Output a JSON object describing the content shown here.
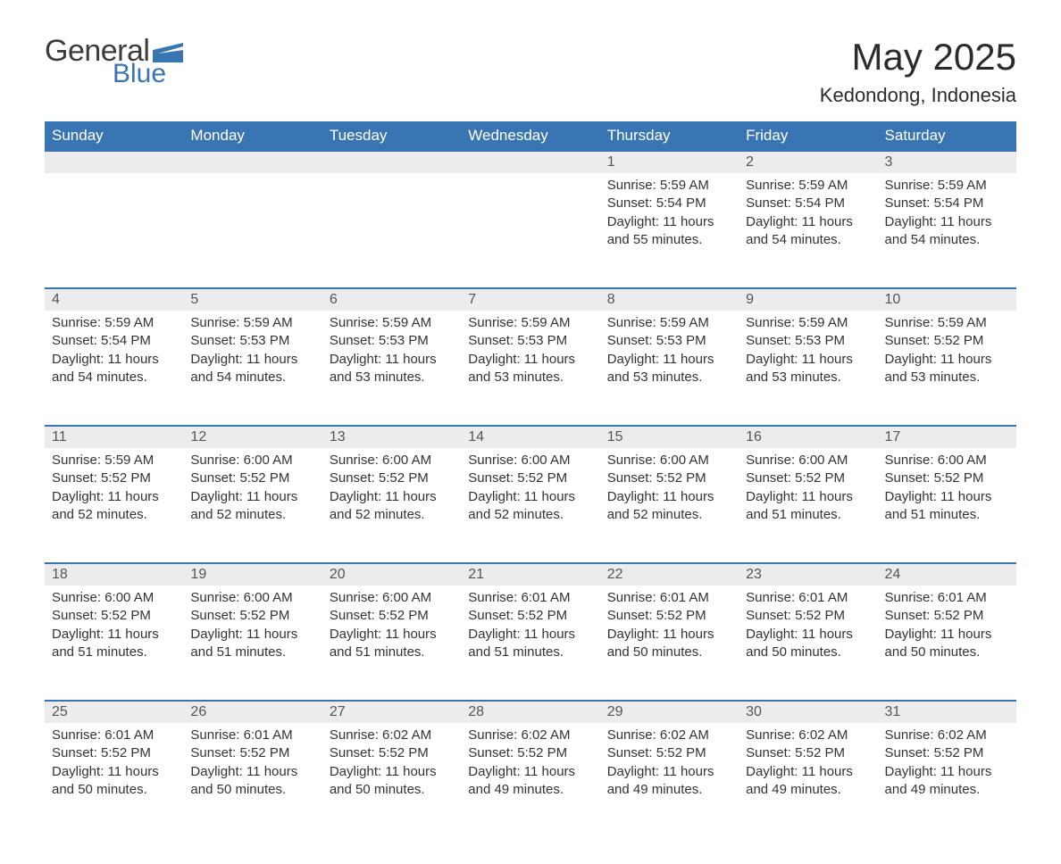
{
  "brand": {
    "word1": "General",
    "word2": "Blue",
    "flag_color": "#3a75b3",
    "text_color": "#3b3b3b"
  },
  "title": "May 2025",
  "location": "Kedondong, Indonesia",
  "header_bg": "#3a75b3",
  "header_text": "#ffffff",
  "daynum_bg": "#ececec",
  "border_color": "#3a75b3",
  "weekdays": [
    "Sunday",
    "Monday",
    "Tuesday",
    "Wednesday",
    "Thursday",
    "Friday",
    "Saturday"
  ],
  "weeks": [
    [
      null,
      null,
      null,
      null,
      {
        "n": "1",
        "sunrise": "5:59 AM",
        "sunset": "5:54 PM",
        "daylight": "11 hours and 55 minutes."
      },
      {
        "n": "2",
        "sunrise": "5:59 AM",
        "sunset": "5:54 PM",
        "daylight": "11 hours and 54 minutes."
      },
      {
        "n": "3",
        "sunrise": "5:59 AM",
        "sunset": "5:54 PM",
        "daylight": "11 hours and 54 minutes."
      }
    ],
    [
      {
        "n": "4",
        "sunrise": "5:59 AM",
        "sunset": "5:54 PM",
        "daylight": "11 hours and 54 minutes."
      },
      {
        "n": "5",
        "sunrise": "5:59 AM",
        "sunset": "5:53 PM",
        "daylight": "11 hours and 54 minutes."
      },
      {
        "n": "6",
        "sunrise": "5:59 AM",
        "sunset": "5:53 PM",
        "daylight": "11 hours and 53 minutes."
      },
      {
        "n": "7",
        "sunrise": "5:59 AM",
        "sunset": "5:53 PM",
        "daylight": "11 hours and 53 minutes."
      },
      {
        "n": "8",
        "sunrise": "5:59 AM",
        "sunset": "5:53 PM",
        "daylight": "11 hours and 53 minutes."
      },
      {
        "n": "9",
        "sunrise": "5:59 AM",
        "sunset": "5:53 PM",
        "daylight": "11 hours and 53 minutes."
      },
      {
        "n": "10",
        "sunrise": "5:59 AM",
        "sunset": "5:52 PM",
        "daylight": "11 hours and 53 minutes."
      }
    ],
    [
      {
        "n": "11",
        "sunrise": "5:59 AM",
        "sunset": "5:52 PM",
        "daylight": "11 hours and 52 minutes."
      },
      {
        "n": "12",
        "sunrise": "6:00 AM",
        "sunset": "5:52 PM",
        "daylight": "11 hours and 52 minutes."
      },
      {
        "n": "13",
        "sunrise": "6:00 AM",
        "sunset": "5:52 PM",
        "daylight": "11 hours and 52 minutes."
      },
      {
        "n": "14",
        "sunrise": "6:00 AM",
        "sunset": "5:52 PM",
        "daylight": "11 hours and 52 minutes."
      },
      {
        "n": "15",
        "sunrise": "6:00 AM",
        "sunset": "5:52 PM",
        "daylight": "11 hours and 52 minutes."
      },
      {
        "n": "16",
        "sunrise": "6:00 AM",
        "sunset": "5:52 PM",
        "daylight": "11 hours and 51 minutes."
      },
      {
        "n": "17",
        "sunrise": "6:00 AM",
        "sunset": "5:52 PM",
        "daylight": "11 hours and 51 minutes."
      }
    ],
    [
      {
        "n": "18",
        "sunrise": "6:00 AM",
        "sunset": "5:52 PM",
        "daylight": "11 hours and 51 minutes."
      },
      {
        "n": "19",
        "sunrise": "6:00 AM",
        "sunset": "5:52 PM",
        "daylight": "11 hours and 51 minutes."
      },
      {
        "n": "20",
        "sunrise": "6:00 AM",
        "sunset": "5:52 PM",
        "daylight": "11 hours and 51 minutes."
      },
      {
        "n": "21",
        "sunrise": "6:01 AM",
        "sunset": "5:52 PM",
        "daylight": "11 hours and 51 minutes."
      },
      {
        "n": "22",
        "sunrise": "6:01 AM",
        "sunset": "5:52 PM",
        "daylight": "11 hours and 50 minutes."
      },
      {
        "n": "23",
        "sunrise": "6:01 AM",
        "sunset": "5:52 PM",
        "daylight": "11 hours and 50 minutes."
      },
      {
        "n": "24",
        "sunrise": "6:01 AM",
        "sunset": "5:52 PM",
        "daylight": "11 hours and 50 minutes."
      }
    ],
    [
      {
        "n": "25",
        "sunrise": "6:01 AM",
        "sunset": "5:52 PM",
        "daylight": "11 hours and 50 minutes."
      },
      {
        "n": "26",
        "sunrise": "6:01 AM",
        "sunset": "5:52 PM",
        "daylight": "11 hours and 50 minutes."
      },
      {
        "n": "27",
        "sunrise": "6:02 AM",
        "sunset": "5:52 PM",
        "daylight": "11 hours and 50 minutes."
      },
      {
        "n": "28",
        "sunrise": "6:02 AM",
        "sunset": "5:52 PM",
        "daylight": "11 hours and 49 minutes."
      },
      {
        "n": "29",
        "sunrise": "6:02 AM",
        "sunset": "5:52 PM",
        "daylight": "11 hours and 49 minutes."
      },
      {
        "n": "30",
        "sunrise": "6:02 AM",
        "sunset": "5:52 PM",
        "daylight": "11 hours and 49 minutes."
      },
      {
        "n": "31",
        "sunrise": "6:02 AM",
        "sunset": "5:52 PM",
        "daylight": "11 hours and 49 minutes."
      }
    ]
  ],
  "labels": {
    "sunrise": "Sunrise: ",
    "sunset": "Sunset: ",
    "daylight": "Daylight: "
  }
}
